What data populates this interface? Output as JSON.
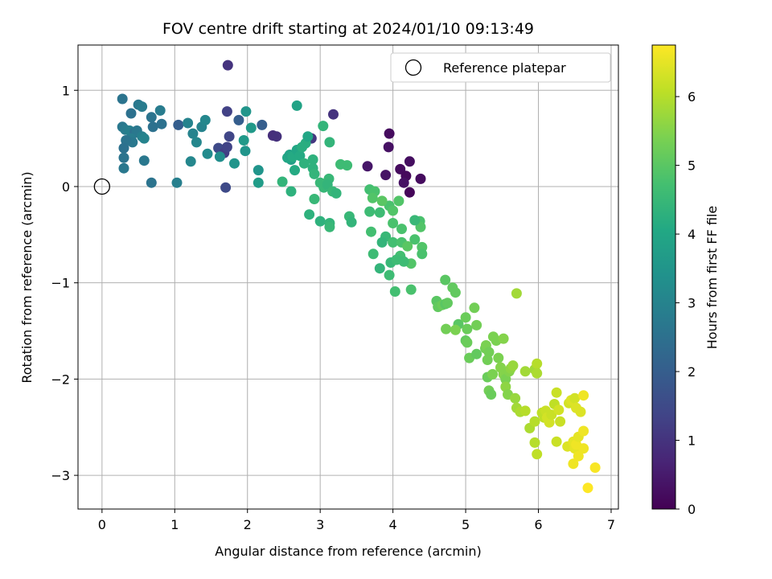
{
  "chart_data": {
    "type": "scatter",
    "title": "FOV centre drift starting at 2024/01/10 09:13:49",
    "xlabel": "Angular distance from reference (arcmin)",
    "ylabel": "Rotation from reference (arcmin)",
    "xlim": [
      -0.33,
      7.1
    ],
    "ylim": [
      -3.35,
      1.47
    ],
    "x_ticks": [
      0,
      1,
      2,
      3,
      4,
      5,
      6,
      7
    ],
    "y_ticks": [
      1,
      0,
      -1,
      -2,
      -3
    ],
    "x_tick_labels": [
      "0",
      "1",
      "2",
      "3",
      "4",
      "5",
      "6",
      "7"
    ],
    "y_tick_labels": [
      "1",
      "0",
      "−1",
      "−2",
      "−3"
    ],
    "grid": true,
    "legend": {
      "label": "Reference platepar",
      "placement": "top-right"
    },
    "reference_point": {
      "x": 0,
      "y": 0
    },
    "colorbar": {
      "label": "Hours from first FF file",
      "colormap": "viridis",
      "range": [
        0,
        6.75
      ],
      "ticks": [
        0,
        1,
        2,
        3,
        4,
        5,
        6
      ],
      "tick_labels": [
        "0",
        "1",
        "2",
        "3",
        "4",
        "5",
        "6"
      ]
    },
    "points": [
      [
        3.95,
        0.55,
        0.2
      ],
      [
        3.94,
        0.41,
        0.3
      ],
      [
        4.23,
        0.26,
        0.25
      ],
      [
        4.1,
        0.18,
        0.2
      ],
      [
        3.9,
        0.12,
        0.35
      ],
      [
        3.65,
        0.21,
        0.4
      ],
      [
        4.18,
        0.11,
        0.15
      ],
      [
        4.38,
        0.08,
        0.2
      ],
      [
        4.15,
        0.04,
        0.3
      ],
      [
        4.23,
        -0.06,
        0.1
      ],
      [
        1.73,
        1.26,
        1.0
      ],
      [
        2.88,
        0.5,
        1.1
      ],
      [
        3.18,
        0.75,
        1.0
      ],
      [
        2.35,
        0.53,
        0.9
      ],
      [
        2.4,
        0.52,
        0.95
      ],
      [
        1.72,
        0.78,
        1.3
      ],
      [
        1.75,
        0.52,
        1.4
      ],
      [
        1.6,
        0.4,
        1.5
      ],
      [
        1.68,
        0.35,
        1.2
      ],
      [
        1.72,
        0.41,
        1.35
      ],
      [
        1.7,
        -0.01,
        1.5
      ],
      [
        1.05,
        0.64,
        2.0
      ],
      [
        2.2,
        0.64,
        2.0
      ],
      [
        1.88,
        0.69,
        2.0
      ],
      [
        0.28,
        0.91,
        2.6
      ],
      [
        0.5,
        0.85,
        2.7
      ],
      [
        0.55,
        0.83,
        2.8
      ],
      [
        0.4,
        0.76,
        2.5
      ],
      [
        0.8,
        0.79,
        2.8
      ],
      [
        0.82,
        0.65,
        2.5
      ],
      [
        0.68,
        0.72,
        2.6
      ],
      [
        0.7,
        0.62,
        2.5
      ],
      [
        0.28,
        0.62,
        2.7
      ],
      [
        0.32,
        0.59,
        2.8
      ],
      [
        0.38,
        0.58,
        2.9
      ],
      [
        0.45,
        0.56,
        2.5
      ],
      [
        0.48,
        0.58,
        2.7
      ],
      [
        0.55,
        0.52,
        2.9
      ],
      [
        0.58,
        0.5,
        3.0
      ],
      [
        0.4,
        0.5,
        2.8
      ],
      [
        0.42,
        0.46,
        2.7
      ],
      [
        0.33,
        0.48,
        2.6
      ],
      [
        0.3,
        0.4,
        2.5
      ],
      [
        0.3,
        0.3,
        2.6
      ],
      [
        0.3,
        0.19,
        2.7
      ],
      [
        0.58,
        0.27,
        2.7
      ],
      [
        0.68,
        0.04,
        2.6
      ],
      [
        1.03,
        0.04,
        2.9
      ],
      [
        1.18,
        0.66,
        3.0
      ],
      [
        1.25,
        0.55,
        3.0
      ],
      [
        1.3,
        0.46,
        3.1
      ],
      [
        1.37,
        0.62,
        3.0
      ],
      [
        1.42,
        0.69,
        3.1
      ],
      [
        1.45,
        0.34,
        3.2
      ],
      [
        1.22,
        0.26,
        3.1
      ],
      [
        1.62,
        0.31,
        3.3
      ],
      [
        1.98,
        0.78,
        3.5
      ],
      [
        2.05,
        0.61,
        3.6
      ],
      [
        1.95,
        0.48,
        3.6
      ],
      [
        1.97,
        0.37,
        3.5
      ],
      [
        1.82,
        0.24,
        3.5
      ],
      [
        2.15,
        0.17,
        3.5
      ],
      [
        2.15,
        0.04,
        3.7
      ],
      [
        2.68,
        0.84,
        3.9
      ],
      [
        2.6,
        0.28,
        3.8
      ],
      [
        2.55,
        0.3,
        4.0
      ],
      [
        2.58,
        0.33,
        3.9
      ],
      [
        2.62,
        0.31,
        4.1
      ],
      [
        2.68,
        0.38,
        4.0
      ],
      [
        2.72,
        0.32,
        4.1
      ],
      [
        2.75,
        0.41,
        4.2
      ],
      [
        2.8,
        0.45,
        4.2
      ],
      [
        2.83,
        0.52,
        4.0
      ],
      [
        2.65,
        0.17,
        4.1
      ],
      [
        2.78,
        0.24,
        4.3
      ],
      [
        2.48,
        0.05,
        4.4
      ],
      [
        2.6,
        -0.05,
        4.3
      ],
      [
        2.9,
        0.28,
        4.3
      ],
      [
        2.9,
        0.19,
        4.3
      ],
      [
        2.92,
        0.13,
        4.4
      ],
      [
        3.04,
        0.63,
        4.4
      ],
      [
        3.13,
        0.46,
        4.4
      ],
      [
        3.0,
        0.04,
        4.5
      ],
      [
        3.05,
        -0.01,
        4.5
      ],
      [
        3.12,
        0.08,
        4.5
      ],
      [
        3.1,
        0.02,
        4.4
      ],
      [
        3.17,
        -0.05,
        4.5
      ],
      [
        3.22,
        -0.07,
        4.4
      ],
      [
        2.92,
        -0.13,
        4.5
      ],
      [
        2.85,
        -0.29,
        4.3
      ],
      [
        3.0,
        -0.36,
        4.3
      ],
      [
        3.13,
        -0.38,
        4.4
      ],
      [
        3.13,
        -0.42,
        4.5
      ],
      [
        3.28,
        0.23,
        4.6
      ],
      [
        3.37,
        0.22,
        4.6
      ],
      [
        3.4,
        -0.31,
        4.5
      ],
      [
        3.43,
        -0.37,
        4.4
      ],
      [
        3.68,
        -0.03,
        4.7
      ],
      [
        3.75,
        -0.05,
        4.8
      ],
      [
        3.72,
        -0.12,
        4.9
      ],
      [
        3.68,
        -0.26,
        4.6
      ],
      [
        3.7,
        -0.47,
        4.7
      ],
      [
        3.82,
        -0.27,
        4.6
      ],
      [
        3.9,
        -0.52,
        4.5
      ],
      [
        3.95,
        -0.2,
        4.8
      ],
      [
        4.0,
        -0.38,
        4.8
      ],
      [
        4.0,
        -0.58,
        4.7
      ],
      [
        3.97,
        -0.79,
        4.5
      ],
      [
        4.08,
        -0.15,
        4.9
      ],
      [
        4.12,
        -0.44,
        4.8
      ],
      [
        4.12,
        -0.58,
        4.8
      ],
      [
        4.1,
        -0.72,
        4.7
      ],
      [
        3.73,
        -0.7,
        4.6
      ],
      [
        3.85,
        -0.58,
        4.4
      ],
      [
        3.95,
        -0.92,
        4.6
      ],
      [
        4.05,
        -0.76,
        4.6
      ],
      [
        4.3,
        -0.55,
        4.8
      ],
      [
        4.37,
        -0.36,
        4.8
      ],
      [
        4.38,
        -0.42,
        4.9
      ],
      [
        4.4,
        -0.63,
        4.9
      ],
      [
        4.4,
        -0.7,
        4.8
      ],
      [
        4.25,
        -0.8,
        4.9
      ],
      [
        4.15,
        -0.78,
        4.6
      ],
      [
        4.03,
        -1.09,
        4.7
      ],
      [
        4.25,
        -1.07,
        4.8
      ],
      [
        3.82,
        -0.85,
        4.4
      ],
      [
        4.3,
        -0.35,
        4.5
      ],
      [
        4.0,
        -0.25,
        4.9
      ],
      [
        3.85,
        -0.15,
        5.0
      ],
      [
        4.2,
        -0.62,
        5.0
      ],
      [
        4.72,
        -0.97,
        5.0
      ],
      [
        4.82,
        -1.05,
        5.1
      ],
      [
        4.86,
        -1.1,
        5.1
      ],
      [
        4.6,
        -1.19,
        5.0
      ],
      [
        4.62,
        -1.25,
        5.1
      ],
      [
        4.68,
        -1.23,
        5.2
      ],
      [
        4.72,
        -1.22,
        5.0
      ],
      [
        4.75,
        -1.21,
        5.1
      ],
      [
        4.9,
        -1.43,
        5.0
      ],
      [
        4.73,
        -1.48,
        5.3
      ],
      [
        4.86,
        -1.49,
        5.4
      ],
      [
        5.0,
        -1.36,
        5.2
      ],
      [
        5.02,
        -1.48,
        5.2
      ],
      [
        5.12,
        -1.26,
        5.3
      ],
      [
        5.15,
        -1.44,
        5.3
      ],
      [
        5.0,
        -1.6,
        5.1
      ],
      [
        5.02,
        -1.62,
        5.2
      ],
      [
        5.05,
        -1.78,
        5.2
      ],
      [
        5.15,
        -1.74,
        5.1
      ],
      [
        5.27,
        -1.68,
        5.3
      ],
      [
        5.28,
        -1.65,
        5.4
      ],
      [
        5.32,
        -1.72,
        5.3
      ],
      [
        5.3,
        -1.8,
        5.3
      ],
      [
        5.38,
        -1.56,
        5.4
      ],
      [
        5.42,
        -1.6,
        5.4
      ],
      [
        5.52,
        -1.58,
        5.5
      ],
      [
        5.3,
        -1.98,
        5.2
      ],
      [
        5.37,
        -1.95,
        5.4
      ],
      [
        5.32,
        -2.12,
        5.3
      ],
      [
        5.35,
        -2.16,
        5.2
      ],
      [
        5.45,
        -1.78,
        5.4
      ],
      [
        5.48,
        -1.88,
        5.5
      ],
      [
        5.52,
        -1.95,
        5.5
      ],
      [
        5.55,
        -2.0,
        5.4
      ],
      [
        5.6,
        -1.92,
        5.5
      ],
      [
        5.62,
        -1.89,
        5.6
      ],
      [
        5.65,
        -1.86,
        5.7
      ],
      [
        5.55,
        -2.08,
        5.6
      ],
      [
        5.58,
        -2.16,
        5.5
      ],
      [
        5.68,
        -2.2,
        5.7
      ],
      [
        5.7,
        -1.11,
        5.8
      ],
      [
        5.82,
        -1.92,
        5.8
      ],
      [
        5.95,
        -1.9,
        5.8
      ],
      [
        5.98,
        -1.84,
        6.0
      ],
      [
        5.98,
        -1.94,
        5.9
      ],
      [
        5.7,
        -2.3,
        5.8
      ],
      [
        5.75,
        -2.34,
        5.9
      ],
      [
        5.82,
        -2.33,
        6.0
      ],
      [
        5.88,
        -2.51,
        5.9
      ],
      [
        5.95,
        -2.44,
        6.0
      ],
      [
        5.95,
        -2.66,
        6.0
      ],
      [
        5.98,
        -2.78,
        6.1
      ],
      [
        6.05,
        -2.35,
        6.1
      ],
      [
        6.08,
        -2.4,
        6.1
      ],
      [
        6.1,
        -2.33,
        6.2
      ],
      [
        6.12,
        -2.4,
        6.3
      ],
      [
        6.15,
        -2.45,
        6.3
      ],
      [
        6.18,
        -2.37,
        6.2
      ],
      [
        6.22,
        -2.26,
        6.1
      ],
      [
        6.28,
        -2.32,
        6.3
      ],
      [
        6.25,
        -2.14,
        6.2
      ],
      [
        6.3,
        -2.44,
        6.2
      ],
      [
        6.25,
        -2.65,
        6.2
      ],
      [
        6.4,
        -2.7,
        6.4
      ],
      [
        6.42,
        -2.25,
        6.3
      ],
      [
        6.45,
        -2.22,
        6.4
      ],
      [
        6.5,
        -2.2,
        6.3
      ],
      [
        6.52,
        -2.3,
        6.4
      ],
      [
        6.48,
        -2.65,
        6.5
      ],
      [
        6.5,
        -2.72,
        6.5
      ],
      [
        6.52,
        -2.68,
        6.6
      ],
      [
        6.55,
        -2.6,
        6.5
      ],
      [
        6.58,
        -2.34,
        6.4
      ],
      [
        6.48,
        -2.88,
        6.6
      ],
      [
        6.55,
        -2.8,
        6.6
      ],
      [
        6.62,
        -2.54,
        6.6
      ],
      [
        6.62,
        -2.72,
        6.6
      ],
      [
        6.62,
        -2.17,
        6.6
      ],
      [
        6.78,
        -2.92,
        6.7
      ],
      [
        6.68,
        -3.13,
        6.75
      ]
    ]
  }
}
